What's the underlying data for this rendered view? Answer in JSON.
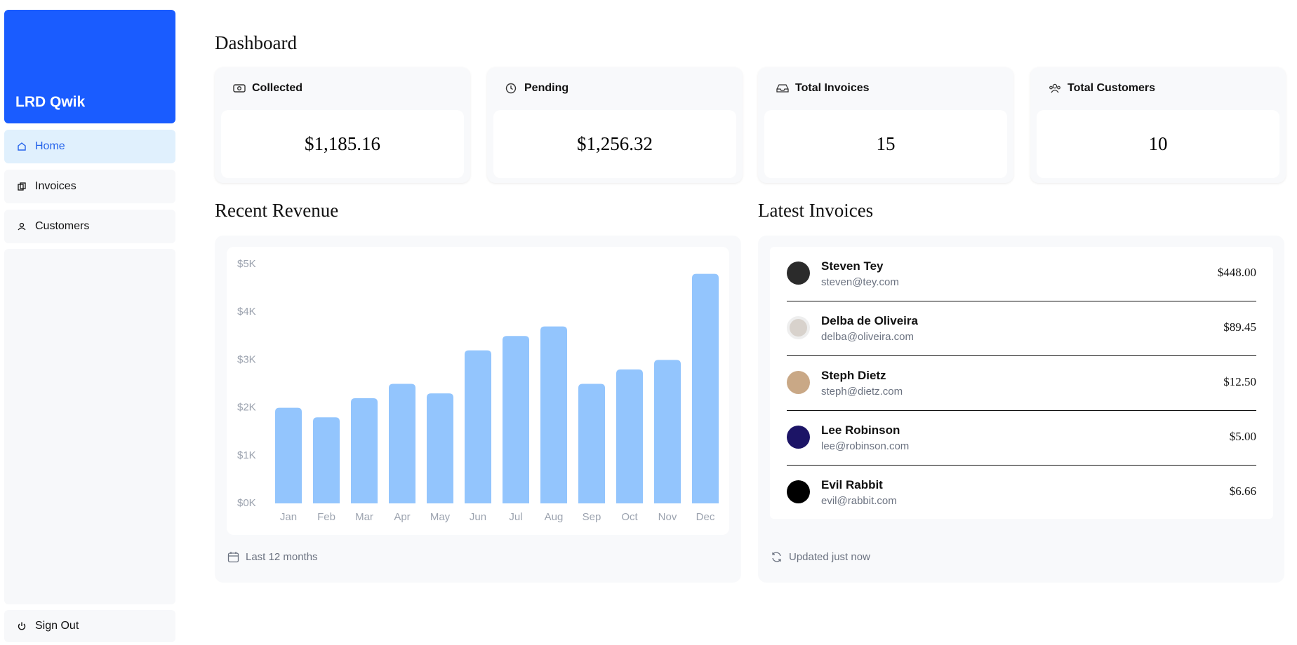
{
  "sidebar": {
    "brand": "LRD Qwik",
    "nav": [
      "Home",
      "Invoices",
      "Customers"
    ],
    "sign_out": "Sign Out"
  },
  "header": {
    "title": "Dashboard"
  },
  "cards": [
    {
      "title": "Collected",
      "value": "$1,185.16"
    },
    {
      "title": "Pending",
      "value": "$1,256.32"
    },
    {
      "title": "Total Invoices",
      "value": "15"
    },
    {
      "title": "Total Customers",
      "value": "10"
    }
  ],
  "revenue": {
    "title": "Recent Revenue",
    "footer": "Last 12 months",
    "chart_data": {
      "type": "bar",
      "categories": [
        "Jan",
        "Feb",
        "Mar",
        "Apr",
        "May",
        "Jun",
        "Jul",
        "Aug",
        "Sep",
        "Oct",
        "Nov",
        "Dec"
      ],
      "values": [
        2000,
        1800,
        2200,
        2500,
        2300,
        3200,
        3500,
        3700,
        2500,
        2800,
        3000,
        4800
      ],
      "color": "#93c5fd",
      "ylim": [
        0,
        5000
      ],
      "yticks": [
        {
          "value": 0,
          "label": "$0K"
        },
        {
          "value": 1000,
          "label": "$1K"
        },
        {
          "value": 2000,
          "label": "$2K"
        },
        {
          "value": 3000,
          "label": "$3K"
        },
        {
          "value": 4000,
          "label": "$4K"
        },
        {
          "value": 5000,
          "label": "$5K"
        }
      ],
      "grid": false
    }
  },
  "latest_invoices": {
    "title": "Latest Invoices",
    "footer": "Updated just now",
    "rows": [
      {
        "name": "Steven Tey",
        "email": "steven@tey.com",
        "amount": "$448.00"
      },
      {
        "name": "Delba de Oliveira",
        "email": "delba@oliveira.com",
        "amount": "$89.45"
      },
      {
        "name": "Steph Dietz",
        "email": "steph@dietz.com",
        "amount": "$12.50"
      },
      {
        "name": "Lee Robinson",
        "email": "lee@robinson.com",
        "amount": "$5.00"
      },
      {
        "name": "Evil Rabbit",
        "email": "evil@rabbit.com",
        "amount": "$6.66"
      }
    ]
  }
}
